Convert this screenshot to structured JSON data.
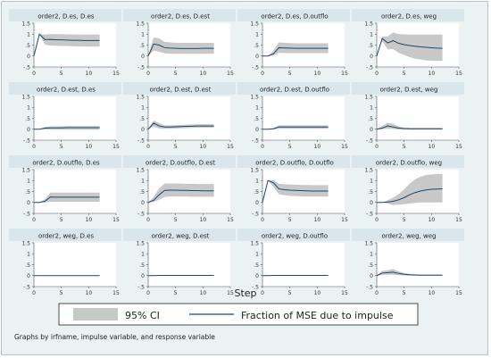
{
  "chart_data": {
    "type": "line",
    "panel_titles": [
      "order2, D.es, D.es",
      "order2, D.es, D.est",
      "order2, D.es, D.outflo",
      "order2, D.es, weg",
      "order2, D.est, D.es",
      "order2, D.est, D.est",
      "order2, D.est, D.outflo",
      "order2, D.est, weg",
      "order2, D.outflo, D.es",
      "order2, D.outflo, D.est",
      "order2, D.outflo, D.outflo",
      "order2, D.outflo, weg",
      "order2, weg, D.es",
      "order2, weg, D.est",
      "order2, weg, D.outflo",
      "order2, weg, weg"
    ],
    "xlabel": "Step",
    "x_ticks": [
      "0",
      "5",
      "10",
      "15"
    ],
    "xlim": [
      0,
      15
    ],
    "ylim": [
      -0.5,
      1.5
    ],
    "y_ticks": [
      "-.5",
      "0",
      ".5",
      "1",
      "1.5"
    ],
    "steps": [
      0,
      1,
      2,
      3,
      4,
      5,
      6,
      7,
      8,
      9,
      10,
      11,
      12
    ],
    "legend": {
      "ci_label": "95% CI",
      "line_label": "Fraction of MSE due to impulse",
      "position": "bottom"
    },
    "note": "Graphs by irfname, impulse variable, and response variable",
    "colors": {
      "ci_band": "#c8c8c8",
      "line": "#1a476f",
      "panel_bg": "#ffffff",
      "outer_bg": "#eaf2f3",
      "title_bar": "#d9e6eb"
    },
    "panels": [
      {
        "fevd": [
          0,
          1.0,
          0.75,
          0.76,
          0.74,
          0.74,
          0.73,
          0.72,
          0.72,
          0.71,
          0.71,
          0.71,
          0.71
        ],
        "lower": [
          0,
          1.0,
          0.52,
          0.48,
          0.47,
          0.46,
          0.46,
          0.45,
          0.44,
          0.44,
          0.43,
          0.43,
          0.43
        ],
        "upper": [
          0,
          1.0,
          0.98,
          1.0,
          1.0,
          1.0,
          0.99,
          0.99,
          0.98,
          0.98,
          0.98,
          0.98,
          0.98
        ]
      },
      {
        "fevd": [
          0,
          0.55,
          0.5,
          0.38,
          0.36,
          0.35,
          0.34,
          0.34,
          0.34,
          0.34,
          0.35,
          0.35,
          0.35
        ],
        "lower": [
          0,
          0.25,
          0.2,
          0.12,
          0.1,
          0.1,
          0.1,
          0.1,
          0.1,
          0.1,
          0.1,
          0.1,
          0.1
        ],
        "upper": [
          0,
          0.85,
          0.8,
          0.65,
          0.62,
          0.6,
          0.6,
          0.6,
          0.6,
          0.6,
          0.6,
          0.6,
          0.6
        ]
      },
      {
        "fevd": [
          0,
          0.0,
          0.1,
          0.38,
          0.37,
          0.36,
          0.35,
          0.35,
          0.35,
          0.35,
          0.35,
          0.35,
          0.35
        ],
        "lower": [
          0,
          0.0,
          0.03,
          0.15,
          0.14,
          0.13,
          0.13,
          0.13,
          0.13,
          0.13,
          0.13,
          0.13,
          0.13
        ],
        "upper": [
          0,
          0.0,
          0.25,
          0.62,
          0.6,
          0.59,
          0.58,
          0.58,
          0.58,
          0.58,
          0.58,
          0.58,
          0.58
        ]
      },
      {
        "fevd": [
          0,
          0.8,
          0.6,
          0.7,
          0.58,
          0.52,
          0.48,
          0.45,
          0.42,
          0.4,
          0.38,
          0.36,
          0.35
        ],
        "lower": [
          0,
          0.7,
          0.3,
          0.32,
          0.15,
          0.05,
          -0.05,
          -0.12,
          -0.16,
          -0.2,
          -0.22,
          -0.22,
          -0.22
        ],
        "upper": [
          0,
          0.9,
          0.9,
          1.08,
          1.0,
          0.99,
          0.98,
          0.98,
          0.98,
          0.98,
          0.98,
          0.98,
          0.98
        ]
      },
      {
        "fevd": [
          0,
          0.0,
          0.05,
          0.06,
          0.06,
          0.06,
          0.07,
          0.07,
          0.07,
          0.07,
          0.07,
          0.07,
          0.07
        ],
        "lower": [
          0,
          0.0,
          -0.01,
          -0.02,
          -0.02,
          -0.02,
          -0.02,
          -0.02,
          -0.02,
          -0.02,
          -0.02,
          -0.02,
          -0.02
        ],
        "upper": [
          0,
          0.0,
          0.1,
          0.13,
          0.14,
          0.14,
          0.15,
          0.15,
          0.15,
          0.15,
          0.15,
          0.15,
          0.15
        ]
      },
      {
        "fevd": [
          0,
          0.28,
          0.15,
          0.1,
          0.1,
          0.11,
          0.12,
          0.13,
          0.14,
          0.15,
          0.15,
          0.15,
          0.15
        ],
        "lower": [
          0,
          0.12,
          0.03,
          0.02,
          0.02,
          0.03,
          0.04,
          0.05,
          0.06,
          0.07,
          0.07,
          0.07,
          0.07
        ],
        "upper": [
          0,
          0.4,
          0.28,
          0.18,
          0.18,
          0.19,
          0.2,
          0.21,
          0.22,
          0.23,
          0.23,
          0.23,
          0.23
        ]
      },
      {
        "fevd": [
          0,
          0.0,
          0.02,
          0.1,
          0.1,
          0.1,
          0.1,
          0.1,
          0.1,
          0.1,
          0.1,
          0.1,
          0.1
        ],
        "lower": [
          0,
          0.0,
          -0.01,
          0.02,
          0.02,
          0.02,
          0.02,
          0.02,
          0.02,
          0.02,
          0.02,
          0.02,
          0.02
        ],
        "upper": [
          0,
          0.0,
          0.05,
          0.18,
          0.18,
          0.18,
          0.18,
          0.18,
          0.18,
          0.18,
          0.18,
          0.18,
          0.18
        ]
      },
      {
        "fevd": [
          0,
          0.05,
          0.15,
          0.1,
          0.05,
          0.03,
          0.02,
          0.02,
          0.02,
          0.02,
          0.02,
          0.02,
          0.02
        ],
        "lower": [
          0,
          0.0,
          0.02,
          0.01,
          -0.01,
          -0.02,
          -0.02,
          -0.02,
          -0.02,
          -0.02,
          -0.02,
          -0.02,
          -0.02
        ],
        "upper": [
          0,
          0.15,
          0.3,
          0.25,
          0.12,
          0.08,
          0.06,
          0.06,
          0.06,
          0.06,
          0.06,
          0.06,
          0.06
        ]
      },
      {
        "fevd": [
          0,
          0.0,
          0.05,
          0.25,
          0.24,
          0.24,
          0.24,
          0.24,
          0.24,
          0.24,
          0.24,
          0.24,
          0.24
        ],
        "lower": [
          0,
          0.0,
          0.0,
          0.03,
          0.03,
          0.03,
          0.03,
          0.03,
          0.03,
          0.03,
          0.03,
          0.03,
          0.03
        ],
        "upper": [
          0,
          0.0,
          0.15,
          0.45,
          0.45,
          0.45,
          0.45,
          0.45,
          0.45,
          0.45,
          0.45,
          0.45,
          0.45
        ]
      },
      {
        "fevd": [
          0,
          0.1,
          0.35,
          0.55,
          0.56,
          0.56,
          0.55,
          0.55,
          0.54,
          0.54,
          0.53,
          0.53,
          0.53
        ],
        "lower": [
          0,
          0.02,
          0.12,
          0.25,
          0.27,
          0.27,
          0.27,
          0.27,
          0.26,
          0.26,
          0.26,
          0.26,
          0.26
        ],
        "upper": [
          0,
          0.25,
          0.65,
          0.86,
          0.87,
          0.87,
          0.86,
          0.85,
          0.85,
          0.84,
          0.84,
          0.84,
          0.84
        ]
      },
      {
        "fevd": [
          0,
          1.0,
          0.9,
          0.62,
          0.58,
          0.56,
          0.55,
          0.54,
          0.53,
          0.52,
          0.52,
          0.52,
          0.52
        ],
        "lower": [
          0,
          1.0,
          0.72,
          0.38,
          0.33,
          0.3,
          0.29,
          0.28,
          0.27,
          0.27,
          0.27,
          0.27,
          0.27
        ],
        "upper": [
          0,
          1.0,
          1.02,
          0.85,
          0.83,
          0.82,
          0.81,
          0.8,
          0.8,
          0.79,
          0.79,
          0.79,
          0.79
        ]
      },
      {
        "fevd": [
          0,
          0.0,
          0.02,
          0.05,
          0.12,
          0.22,
          0.35,
          0.45,
          0.52,
          0.57,
          0.6,
          0.61,
          0.62
        ],
        "lower": [
          0,
          0.0,
          -0.05,
          -0.12,
          -0.1,
          -0.08,
          -0.05,
          -0.02,
          0.0,
          0.0,
          0.0,
          0.0,
          0.0
        ],
        "upper": [
          0,
          0.0,
          0.1,
          0.22,
          0.38,
          0.6,
          0.85,
          1.05,
          1.18,
          1.25,
          1.28,
          1.3,
          1.3
        ]
      },
      {
        "fevd": [
          0,
          0.0,
          0.0,
          0.0,
          0.0,
          0.0,
          0.0,
          0.0,
          0.0,
          0.0,
          0.0,
          0.0,
          0.0
        ],
        "lower": [
          0,
          0.0,
          0.0,
          0.0,
          0.0,
          0.0,
          0.0,
          0.0,
          0.0,
          0.0,
          0.0,
          0.0,
          0.0
        ],
        "upper": [
          0,
          0.0,
          0.01,
          0.01,
          0.01,
          0.01,
          0.01,
          0.01,
          0.01,
          0.01,
          0.01,
          0.01,
          0.01
        ]
      },
      {
        "fevd": [
          0,
          0.0,
          0.01,
          0.01,
          0.01,
          0.01,
          0.01,
          0.01,
          0.01,
          0.01,
          0.01,
          0.01,
          0.01
        ],
        "lower": [
          0,
          0.0,
          0.0,
          0.0,
          0.0,
          0.0,
          0.0,
          0.0,
          0.0,
          0.0,
          0.0,
          0.0,
          0.0
        ],
        "upper": [
          0,
          0.0,
          0.02,
          0.02,
          0.02,
          0.02,
          0.02,
          0.02,
          0.02,
          0.02,
          0.02,
          0.02,
          0.02
        ]
      },
      {
        "fevd": [
          0,
          0.0,
          0.01,
          0.01,
          0.01,
          0.01,
          0.01,
          0.01,
          0.01,
          0.01,
          0.01,
          0.01,
          0.01
        ],
        "lower": [
          0,
          0.0,
          0.0,
          0.0,
          0.0,
          0.0,
          0.0,
          0.0,
          0.0,
          0.0,
          0.0,
          0.0,
          0.0
        ],
        "upper": [
          0,
          0.0,
          0.02,
          0.03,
          0.03,
          0.03,
          0.03,
          0.03,
          0.03,
          0.03,
          0.03,
          0.03,
          0.03
        ]
      },
      {
        "fevd": [
          0,
          0.12,
          0.14,
          0.16,
          0.1,
          0.06,
          0.04,
          0.03,
          0.02,
          0.02,
          0.02,
          0.02,
          0.02
        ],
        "lower": [
          0,
          0.03,
          0.04,
          0.04,
          0.02,
          0.01,
          0.0,
          0.0,
          0.0,
          0.0,
          0.0,
          0.0,
          0.0
        ],
        "upper": [
          0,
          0.22,
          0.25,
          0.3,
          0.2,
          0.12,
          0.08,
          0.06,
          0.05,
          0.05,
          0.05,
          0.05,
          0.05
        ]
      }
    ]
  }
}
